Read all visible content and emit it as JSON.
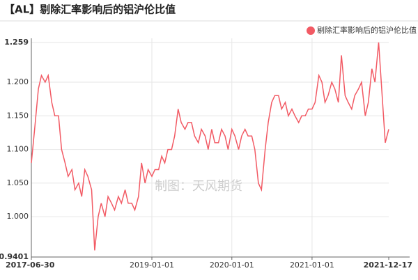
{
  "chart_data": {
    "type": "line",
    "title": "【AL】剔除汇率影响后的铝沪伦比值",
    "watermark": "制图：天风期货",
    "x": [
      "2017-06-30",
      "2017-07-15",
      "2017-08-01",
      "2017-08-15",
      "2017-09-01",
      "2017-09-15",
      "2017-10-01",
      "2017-10-15",
      "2017-11-01",
      "2017-11-15",
      "2017-12-01",
      "2017-12-15",
      "2018-01-01",
      "2018-01-15",
      "2018-02-01",
      "2018-02-15",
      "2018-03-01",
      "2018-03-15",
      "2018-04-01",
      "2018-04-15",
      "2018-05-01",
      "2018-05-15",
      "2018-06-01",
      "2018-06-15",
      "2018-07-01",
      "2018-07-15",
      "2018-08-01",
      "2018-08-15",
      "2018-09-01",
      "2018-09-15",
      "2018-10-01",
      "2018-10-15",
      "2018-11-01",
      "2018-11-15",
      "2018-12-01",
      "2018-12-15",
      "2019-01-01",
      "2019-01-15",
      "2019-02-01",
      "2019-02-15",
      "2019-03-01",
      "2019-03-15",
      "2019-04-01",
      "2019-04-15",
      "2019-05-01",
      "2019-05-15",
      "2019-06-01",
      "2019-06-15",
      "2019-07-01",
      "2019-07-15",
      "2019-08-01",
      "2019-08-15",
      "2019-09-01",
      "2019-09-15",
      "2019-10-01",
      "2019-10-15",
      "2019-11-01",
      "2019-11-15",
      "2019-12-01",
      "2019-12-15",
      "2020-01-01",
      "2020-01-15",
      "2020-02-01",
      "2020-02-15",
      "2020-03-01",
      "2020-03-15",
      "2020-04-01",
      "2020-04-15",
      "2020-05-01",
      "2020-05-15",
      "2020-06-01",
      "2020-06-15",
      "2020-07-01",
      "2020-07-15",
      "2020-08-01",
      "2020-08-15",
      "2020-09-01",
      "2020-09-15",
      "2020-10-01",
      "2020-10-15",
      "2020-11-01",
      "2020-11-15",
      "2020-12-01",
      "2020-12-15",
      "2021-01-01",
      "2021-01-15",
      "2021-02-01",
      "2021-02-15",
      "2021-03-01",
      "2021-03-15",
      "2021-04-01",
      "2021-04-15",
      "2021-05-01",
      "2021-05-15",
      "2021-06-01",
      "2021-06-15",
      "2021-07-01",
      "2021-07-15",
      "2021-08-01",
      "2021-08-15",
      "2021-09-01",
      "2021-09-15",
      "2021-10-01",
      "2021-10-15",
      "2021-11-01",
      "2021-11-15",
      "2021-12-01",
      "2021-12-17"
    ],
    "series": [
      {
        "name": "剔除汇率影响后的铝沪伦比值",
        "color": "#f25a64",
        "values": [
          1.08,
          1.13,
          1.19,
          1.21,
          1.2,
          1.21,
          1.17,
          1.15,
          1.15,
          1.1,
          1.08,
          1.06,
          1.07,
          1.04,
          1.05,
          1.03,
          1.07,
          1.06,
          1.04,
          0.95,
          1.0,
          1.02,
          1.0,
          1.03,
          1.02,
          1.01,
          1.03,
          1.02,
          1.04,
          1.02,
          1.02,
          1.01,
          1.03,
          1.08,
          1.05,
          1.07,
          1.06,
          1.07,
          1.07,
          1.09,
          1.08,
          1.1,
          1.1,
          1.12,
          1.16,
          1.14,
          1.13,
          1.14,
          1.14,
          1.12,
          1.11,
          1.13,
          1.12,
          1.1,
          1.13,
          1.11,
          1.11,
          1.13,
          1.12,
          1.1,
          1.13,
          1.12,
          1.1,
          1.12,
          1.13,
          1.12,
          1.12,
          1.1,
          1.05,
          1.04,
          1.1,
          1.14,
          1.17,
          1.18,
          1.18,
          1.16,
          1.17,
          1.15,
          1.16,
          1.15,
          1.14,
          1.15,
          1.15,
          1.16,
          1.16,
          1.17,
          1.21,
          1.2,
          1.17,
          1.18,
          1.2,
          1.19,
          1.17,
          1.24,
          1.18,
          1.17,
          1.16,
          1.18,
          1.19,
          1.2,
          1.15,
          1.17,
          1.22,
          1.2,
          1.259,
          1.19,
          1.11,
          1.13
        ]
      }
    ],
    "xlim": [
      "2017-06-30",
      "2021-12-17"
    ],
    "xticks": [
      "2017-06-30",
      "2019-01-01",
      "2020-01-01",
      "2021-01-01",
      "2021-12-17"
    ],
    "ylim": [
      0.9401,
      1.259
    ],
    "yticks": [
      0.9401,
      {
        "value": 1.0,
        "label": "1.000"
      },
      {
        "value": 1.05,
        "label": "1.050"
      },
      {
        "value": 1.1,
        "label": "1.100"
      },
      {
        "value": 1.15,
        "label": "1.150"
      },
      {
        "value": 1.2,
        "label": "1.200"
      },
      1.259
    ],
    "grid": true,
    "legend": "top-right"
  }
}
